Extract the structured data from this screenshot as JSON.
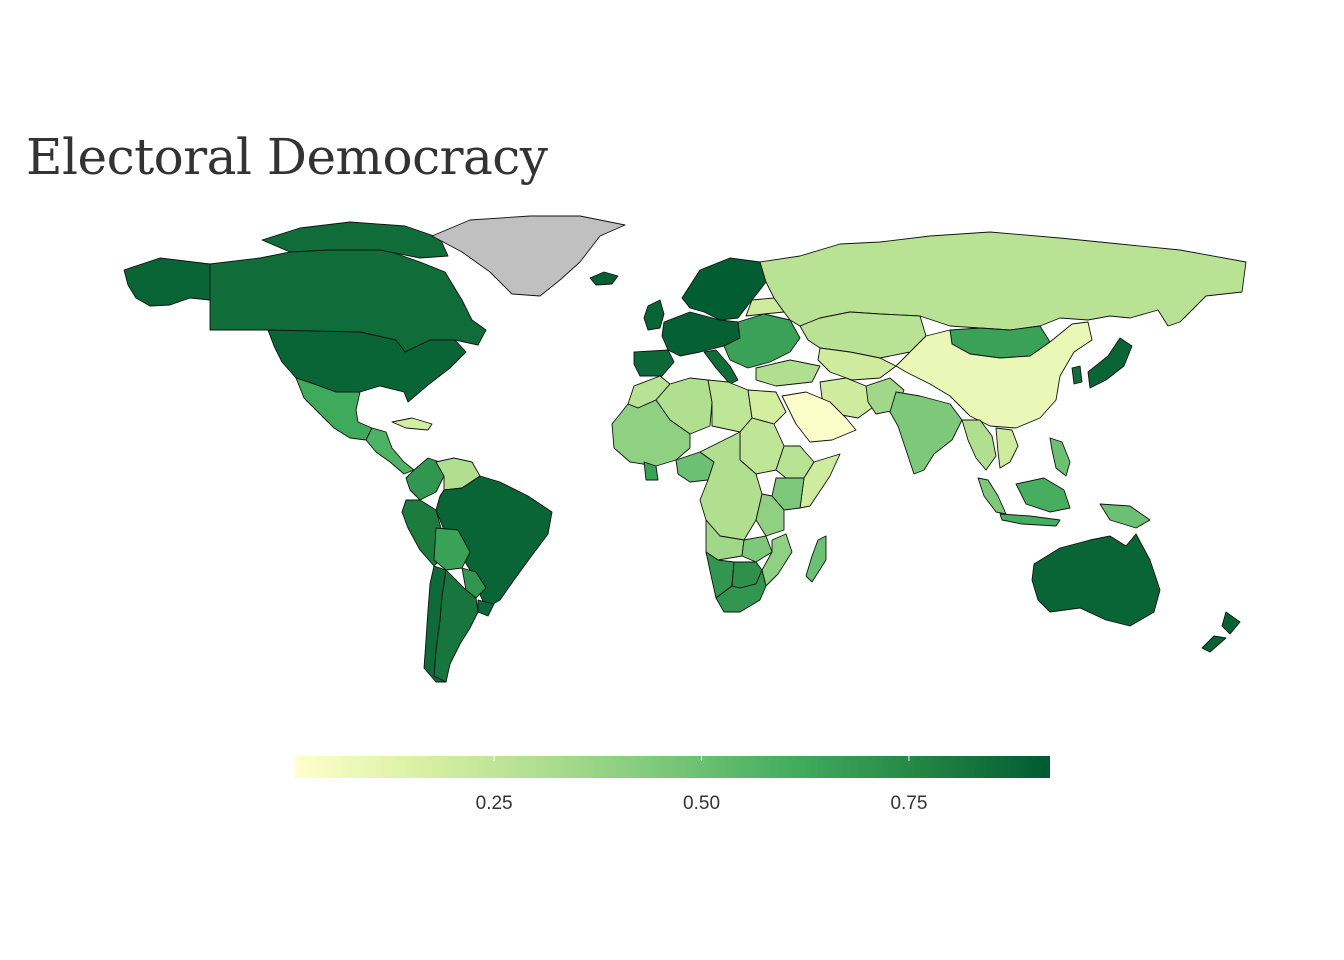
{
  "title": "Electoral Democracy",
  "colorscale": {
    "stops": [
      "#ffffcc",
      "#d9f0a3",
      "#addd8e",
      "#78c679",
      "#41ab5d",
      "#238443",
      "#005a32"
    ],
    "domain": [
      0.01,
      0.92
    ],
    "ticks": [
      {
        "value": 0.25,
        "label": "0.25"
      },
      {
        "value": 0.5,
        "label": "0.50"
      },
      {
        "value": 0.75,
        "label": "0.75"
      }
    ],
    "no_data_color": "#c0c0c0"
  },
  "chart_data": {
    "type": "choropleth",
    "title": "Electoral Democracy",
    "value_range": [
      0.01,
      0.92
    ],
    "regions": [
      {
        "name": "Alaska (US)",
        "value": 0.88
      },
      {
        "name": "Canada",
        "value": 0.85
      },
      {
        "name": "United States",
        "value": 0.88
      },
      {
        "name": "Greenland",
        "value": null
      },
      {
        "name": "Mexico",
        "value": 0.62
      },
      {
        "name": "Central America",
        "value": 0.58
      },
      {
        "name": "Cuba",
        "value": 0.18
      },
      {
        "name": "Venezuela",
        "value": 0.3
      },
      {
        "name": "Colombia",
        "value": 0.7
      },
      {
        "name": "Brazil",
        "value": 0.88
      },
      {
        "name": "Peru",
        "value": 0.8
      },
      {
        "name": "Bolivia",
        "value": 0.65
      },
      {
        "name": "Paraguay",
        "value": 0.7
      },
      {
        "name": "Argentina",
        "value": 0.82
      },
      {
        "name": "Chile",
        "value": 0.86
      },
      {
        "name": "Uruguay",
        "value": 0.87
      },
      {
        "name": "Iceland",
        "value": 0.9
      },
      {
        "name": "Scandinavia",
        "value": 0.91
      },
      {
        "name": "United Kingdom",
        "value": 0.88
      },
      {
        "name": "Western Europe",
        "value": 0.9
      },
      {
        "name": "Iberia",
        "value": 0.87
      },
      {
        "name": "Italy",
        "value": 0.85
      },
      {
        "name": "Eastern Europe",
        "value": 0.65
      },
      {
        "name": "Belarus",
        "value": 0.2
      },
      {
        "name": "Turkey",
        "value": 0.3
      },
      {
        "name": "Russia",
        "value": 0.27
      },
      {
        "name": "Kazakhstan",
        "value": 0.27
      },
      {
        "name": "Central Asia",
        "value": 0.2
      },
      {
        "name": "Mongolia",
        "value": 0.65
      },
      {
        "name": "China",
        "value": 0.09
      },
      {
        "name": "Japan",
        "value": 0.88
      },
      {
        "name": "South Korea",
        "value": 0.85
      },
      {
        "name": "Iran",
        "value": 0.2
      },
      {
        "name": "Saudi Arabia",
        "value": 0.02
      },
      {
        "name": "Pakistan",
        "value": 0.35
      },
      {
        "name": "India",
        "value": 0.45
      },
      {
        "name": "Southeast Asia",
        "value": 0.3
      },
      {
        "name": "Vietnam",
        "value": 0.2
      },
      {
        "name": "Indonesia",
        "value": 0.6
      },
      {
        "name": "Philippines",
        "value": 0.5
      },
      {
        "name": "Malaysia",
        "value": 0.45
      },
      {
        "name": "Papua New Guinea",
        "value": 0.5
      },
      {
        "name": "Australia",
        "value": 0.88
      },
      {
        "name": "New Zealand",
        "value": 0.89
      },
      {
        "name": "Morocco",
        "value": 0.27
      },
      {
        "name": "Algeria",
        "value": 0.3
      },
      {
        "name": "Libya",
        "value": 0.25
      },
      {
        "name": "Egypt",
        "value": 0.18
      },
      {
        "name": "West Africa",
        "value": 0.4
      },
      {
        "name": "Nigeria",
        "value": 0.5
      },
      {
        "name": "Ghana",
        "value": 0.65
      },
      {
        "name": "Sudan",
        "value": 0.25
      },
      {
        "name": "Ethiopia",
        "value": 0.28
      },
      {
        "name": "Somalia",
        "value": 0.2
      },
      {
        "name": "Central Africa",
        "value": 0.3
      },
      {
        "name": "Kenya",
        "value": 0.45
      },
      {
        "name": "Tanzania",
        "value": 0.4
      },
      {
        "name": "Angola",
        "value": 0.35
      },
      {
        "name": "Zambia",
        "value": 0.45
      },
      {
        "name": "Namibia",
        "value": 0.7
      },
      {
        "name": "Botswana",
        "value": 0.72
      },
      {
        "name": "South Africa",
        "value": 0.7
      },
      {
        "name": "Mozambique",
        "value": 0.4
      },
      {
        "name": "Madagascar",
        "value": 0.5
      }
    ]
  }
}
